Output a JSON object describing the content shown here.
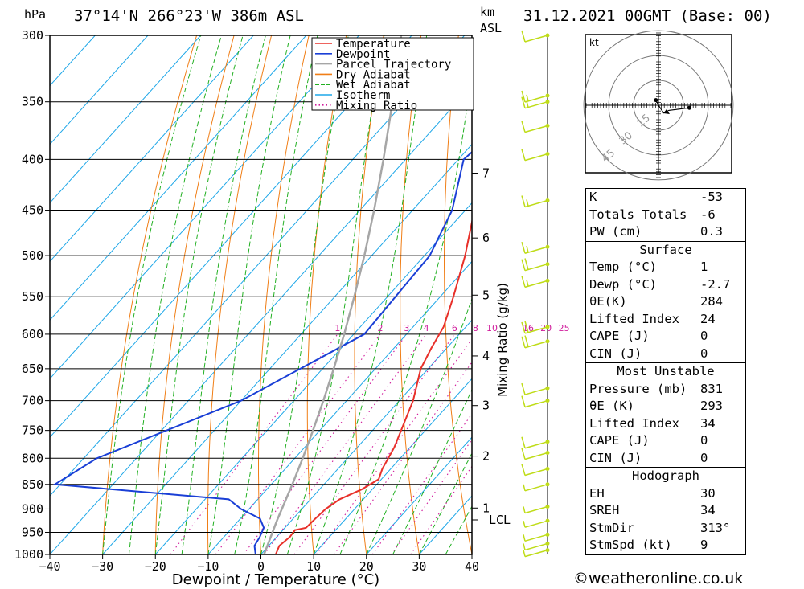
{
  "header": {
    "hpa_label": "hPa",
    "location": "37°14'N 266°23'W 386m ASL",
    "km_label": "km",
    "asl_label": "ASL",
    "datetime": "31.12.2021 00GMT (Base: 00)"
  },
  "colors": {
    "temperature": "#e8302a",
    "dewpoint": "#1a3fd6",
    "parcel": "#a6a6a6",
    "dry_adiabat": "#f07e16",
    "wet_adiabat": "#22b022",
    "isotherm": "#1ea7e8",
    "mixing_ratio": "#d01a9b",
    "wind": "#bfdc18"
  },
  "chart_data": {
    "type": "line",
    "title": "",
    "xlabel": "Dewpoint / Temperature (°C)",
    "ylabel": "",
    "y_axis_title": "hPa",
    "right_axis_title": "Mixing Ratio (g/kg)",
    "xlim": [
      -40,
      40
    ],
    "ylim": [
      1000,
      300
    ],
    "y_scale": "log",
    "x_ticks": [
      "-40",
      "-30",
      "-20",
      "-10",
      "0",
      "10",
      "20",
      "30",
      "40"
    ],
    "pressure_ticks": [
      300,
      350,
      400,
      450,
      500,
      550,
      600,
      650,
      700,
      750,
      800,
      850,
      900,
      950,
      1000
    ],
    "km_ticks": [
      {
        "label": "7",
        "p": 413
      },
      {
        "label": "6",
        "p": 480
      },
      {
        "label": "5",
        "p": 548
      },
      {
        "label": "4",
        "p": 631
      },
      {
        "label": "3",
        "p": 708
      },
      {
        "label": "2",
        "p": 796
      },
      {
        "label": "1",
        "p": 898
      }
    ],
    "lcl": {
      "label": "LCL",
      "p": 923
    },
    "mixing_ratio_labels": [
      "1",
      "2",
      "3",
      "4",
      "6",
      "8",
      "10",
      "16",
      "20",
      "25"
    ],
    "legend": {
      "placement": "top-right",
      "entries": [
        "Temperature",
        "Dewpoint",
        "Parcel Trajectory",
        "Dry Adiabat",
        "Wet Adiabat",
        "Isotherm",
        "Mixing Ratio"
      ]
    },
    "series": [
      {
        "name": "Temperature",
        "points": [
          [
            1000,
            2.8
          ],
          [
            980,
            2
          ],
          [
            960,
            2.5
          ],
          [
            945,
            2.3
          ],
          [
            940,
            4
          ],
          [
            920,
            4.2
          ],
          [
            900,
            4.5
          ],
          [
            880,
            5.5
          ],
          [
            860,
            8
          ],
          [
            840,
            9.5
          ],
          [
            820,
            8.4
          ],
          [
            780,
            7
          ],
          [
            700,
            2.6
          ],
          [
            650,
            -1.4
          ],
          [
            620,
            -2.9
          ],
          [
            590,
            -4.2
          ],
          [
            550,
            -7.5
          ],
          [
            500,
            -12.3
          ],
          [
            450,
            -18.3
          ],
          [
            400,
            -26
          ],
          [
            370,
            -32
          ],
          [
            340,
            -38.4
          ],
          [
            300,
            -47.5
          ]
        ]
      },
      {
        "name": "Dewpoint",
        "points": [
          [
            1000,
            -1
          ],
          [
            980,
            -2.7
          ],
          [
            960,
            -3.2
          ],
          [
            940,
            -4
          ],
          [
            920,
            -6.3
          ],
          [
            900,
            -11.5
          ],
          [
            880,
            -15.5
          ],
          [
            850,
            -51
          ],
          [
            800,
            -47.5
          ],
          [
            700,
            -30
          ],
          [
            600,
            -18
          ],
          [
            500,
            -19
          ],
          [
            450,
            -22.5
          ],
          [
            400,
            -29
          ],
          [
            380,
            -28
          ],
          [
            370,
            -26
          ],
          [
            350,
            -29
          ],
          [
            300,
            -37
          ]
        ]
      },
      {
        "name": "Parcel Trajectory",
        "points": [
          [
            1000,
            0.6
          ],
          [
            923,
            -2.8
          ],
          [
            850,
            -6
          ],
          [
            800,
            -8.5
          ],
          [
            750,
            -11.3
          ],
          [
            700,
            -14.4
          ],
          [
            650,
            -17.9
          ],
          [
            600,
            -21.8
          ],
          [
            550,
            -26.3
          ],
          [
            500,
            -31.4
          ],
          [
            450,
            -37.3
          ],
          [
            400,
            -44.2
          ],
          [
            350,
            -52.3
          ],
          [
            300,
            -62
          ]
        ]
      }
    ],
    "wind_barbs": [
      {
        "p": 300,
        "speed": 10
      },
      {
        "p": 345,
        "speed": 15
      },
      {
        "p": 350,
        "speed": 15
      },
      {
        "p": 370,
        "speed": 10
      },
      {
        "p": 395,
        "speed": 10
      },
      {
        "p": 440,
        "speed": 15
      },
      {
        "p": 490,
        "speed": 15
      },
      {
        "p": 510,
        "speed": 20
      },
      {
        "p": 530,
        "speed": 15
      },
      {
        "p": 590,
        "speed": 20
      },
      {
        "p": 610,
        "speed": 20
      },
      {
        "p": 680,
        "speed": 10
      },
      {
        "p": 700,
        "speed": 10
      },
      {
        "p": 770,
        "speed": 10
      },
      {
        "p": 790,
        "speed": 10
      },
      {
        "p": 820,
        "speed": 10
      },
      {
        "p": 850,
        "speed": 5
      },
      {
        "p": 895,
        "speed": 5
      },
      {
        "p": 925,
        "speed": 5
      },
      {
        "p": 955,
        "speed": 5
      },
      {
        "p": 975,
        "speed": 5
      },
      {
        "p": 990,
        "speed": 5
      }
    ],
    "hodograph": {
      "unit": "kt",
      "ring_labels": [
        "15",
        "30",
        "45"
      ],
      "points": [
        [
          -1,
          2
        ],
        [
          0,
          0
        ],
        [
          2,
          -3
        ],
        [
          4,
          -2
        ],
        [
          8,
          -1.5
        ],
        [
          12,
          -1
        ]
      ]
    }
  },
  "indices": {
    "rows": [
      {
        "label": "K",
        "value": "-53"
      },
      {
        "label": "Totals Totals",
        "value": "-6"
      },
      {
        "label": "PW (cm)",
        "value": "0.3"
      }
    ]
  },
  "surface": {
    "title": "Surface",
    "rows": [
      {
        "label": "Temp (°C)",
        "value": "1"
      },
      {
        "label": "Dewp (°C)",
        "value": "-2.7"
      },
      {
        "label": "θE(K)",
        "value": "284"
      },
      {
        "label": "Lifted Index",
        "value": "24"
      },
      {
        "label": "CAPE (J)",
        "value": "0"
      },
      {
        "label": "CIN (J)",
        "value": "0"
      }
    ]
  },
  "most_unstable": {
    "title": "Most Unstable",
    "rows": [
      {
        "label": "Pressure (mb)",
        "value": "831"
      },
      {
        "label": "θE (K)",
        "value": "293"
      },
      {
        "label": "Lifted Index",
        "value": "34"
      },
      {
        "label": "CAPE (J)",
        "value": "0"
      },
      {
        "label": "CIN (J)",
        "value": "0"
      }
    ]
  },
  "hodograph_stats": {
    "title": "Hodograph",
    "rows": [
      {
        "label": "EH",
        "value": "30"
      },
      {
        "label": "SREH",
        "value": "34"
      },
      {
        "label": "StmDir",
        "value": "313°"
      },
      {
        "label": "StmSpd (kt)",
        "value": "9"
      }
    ]
  },
  "credit": "©weatheronline.co.uk"
}
